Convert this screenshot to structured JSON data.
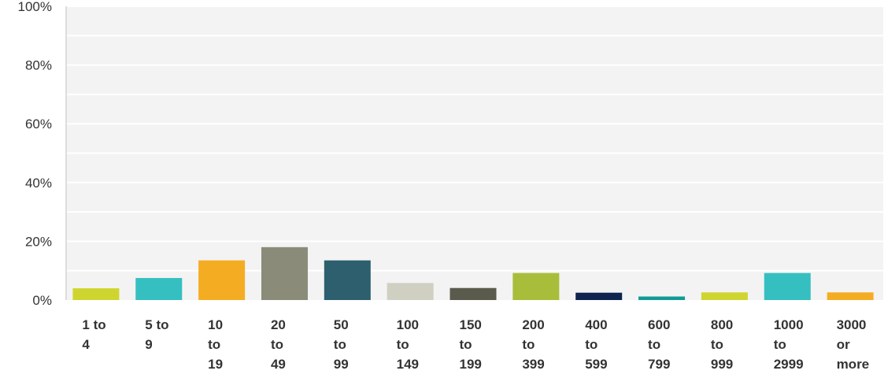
{
  "chart_data": {
    "type": "bar",
    "categories": [
      [
        "1 to",
        "4"
      ],
      [
        "5 to",
        "9"
      ],
      [
        "10",
        "to",
        "19"
      ],
      [
        "20",
        "to",
        "49"
      ],
      [
        "50",
        "to",
        "99"
      ],
      [
        "100",
        "to",
        "149"
      ],
      [
        "150",
        "to",
        "199"
      ],
      [
        "200",
        "to",
        "399"
      ],
      [
        "400",
        "to",
        "599"
      ],
      [
        "600",
        "to",
        "799"
      ],
      [
        "800",
        "to",
        "999"
      ],
      [
        "1000",
        "to",
        "2999"
      ],
      [
        "3000",
        "or",
        "more"
      ]
    ],
    "values": [
      4,
      7.5,
      13.5,
      18,
      13.5,
      5.8,
      4.1,
      9.2,
      2.5,
      1.2,
      2.6,
      9.2,
      2.6
    ],
    "colors": [
      "#cfd52f",
      "#35bfc1",
      "#f4ad22",
      "#8a8b79",
      "#2d5f6e",
      "#cfcfc2",
      "#5a5b4d",
      "#a8be3a",
      "#0e2350",
      "#109a96",
      "#cfd52f",
      "#35bfc1",
      "#f4ad22"
    ],
    "ylim": [
      0,
      100
    ],
    "yticks": [
      0,
      20,
      40,
      60,
      80,
      100
    ],
    "ytick_labels": [
      "0%",
      "20%",
      "40%",
      "60%",
      "80%",
      "100%"
    ],
    "minor_gridlines": [
      10,
      30,
      50,
      70,
      90
    ],
    "grid": true,
    "title": "",
    "xlabel": "",
    "ylabel": ""
  }
}
